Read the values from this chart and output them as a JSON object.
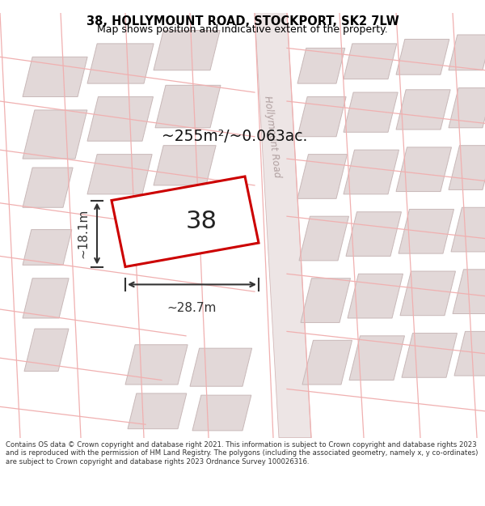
{
  "title": "38, HOLLYMOUNT ROAD, STOCKPORT, SK2 7LW",
  "subtitle": "Map shows position and indicative extent of the property.",
  "footer": "Contains OS data © Crown copyright and database right 2021. This information is subject to Crown copyright and database rights 2023 and is reproduced with the permission of HM Land Registry. The polygons (including the associated geometry, namely x, y co-ordinates) are subject to Crown copyright and database rights 2023 Ordnance Survey 100026316.",
  "area_label": "~255m²/~0.063ac.",
  "property_number": "38",
  "dim_width": "~28.7m",
  "dim_height": "~18.1m",
  "road_label": "Hollymount Road",
  "bg_color": "#ffffff",
  "map_bg": "#f5eded",
  "building_fill": "#e2d8d8",
  "building_stroke": "#c8b8b8",
  "road_fill": "#f0e8e8",
  "road_stroke": "#e0c8c8",
  "property_stroke": "#cc0000",
  "property_fill": "#ffffff",
  "dim_color": "#333333",
  "title_color": "#000000",
  "footer_color": "#333333",
  "pink_line_color": "#f0b0b0"
}
